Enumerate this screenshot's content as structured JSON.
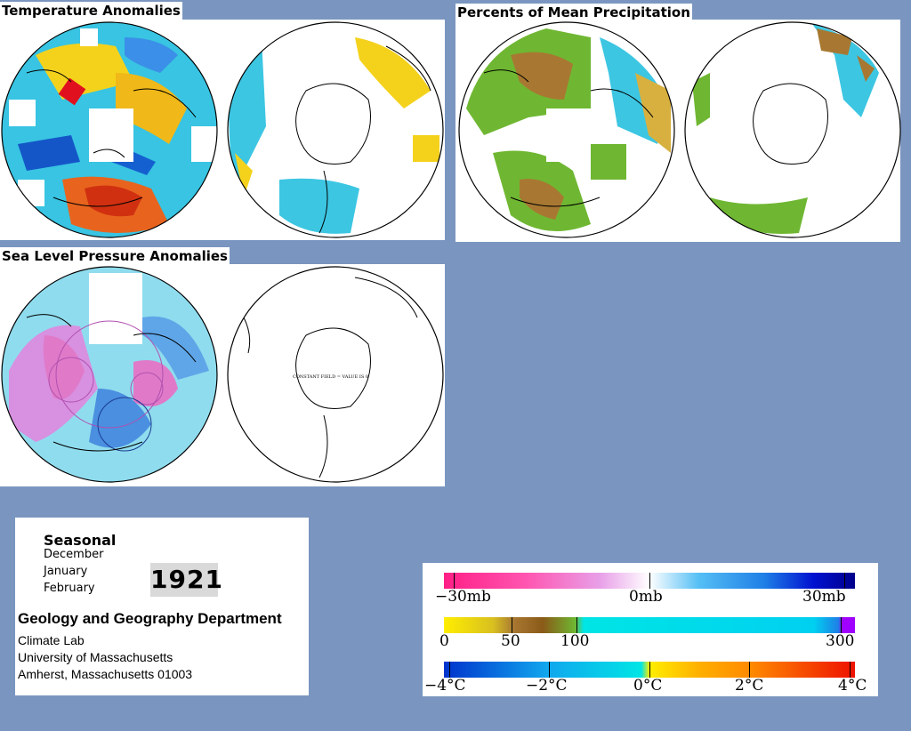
{
  "titles": {
    "temperature": "Temperature Anomalies",
    "precipitation": "Percents of Mean Precipitation",
    "pressure": "Sea Level Pressure Anomalies"
  },
  "map_annotation": "CONSTANT FIELD = VALUE IS 0",
  "info": {
    "heading": "Seasonal",
    "months": [
      "December",
      "January",
      "February"
    ],
    "year": "1921",
    "department": "Geology and Geography Department",
    "lines": [
      "Climate Lab",
      "University of Massachusetts",
      "Amherst, Massachusetts 01003"
    ]
  },
  "legend": {
    "pressure": {
      "labels": [
        "−30mb",
        "0mb",
        "30mb"
      ],
      "colors": [
        "#ff1f86",
        "#ffffff",
        "#00008b"
      ]
    },
    "precipitation": {
      "labels": [
        "0",
        "50",
        "100",
        "300"
      ],
      "colors": [
        "#ffee00",
        "#c08a30",
        "#8a5a18",
        "#6fb732",
        "#00e5e5",
        "#1f7fe6",
        "#a000ff"
      ]
    },
    "temperature": {
      "labels": [
        "−4°C",
        "−2°C",
        "0°C",
        "2°C",
        "4°C"
      ],
      "colors": [
        "#0033cc",
        "#11a6ee",
        "#00e5e5",
        "#ffee00",
        "#ff8800",
        "#ee1100"
      ]
    }
  },
  "colors": {
    "background": "#7a96c0",
    "ocean_fill": "#2fc6e0",
    "warm": "#e0581e",
    "cold": "#1560c8",
    "precip_green": "#6fb732",
    "precip_brown": "#a87832",
    "pressure_fill": "#8fdcee",
    "pressure_pink": "#e07ac8"
  }
}
